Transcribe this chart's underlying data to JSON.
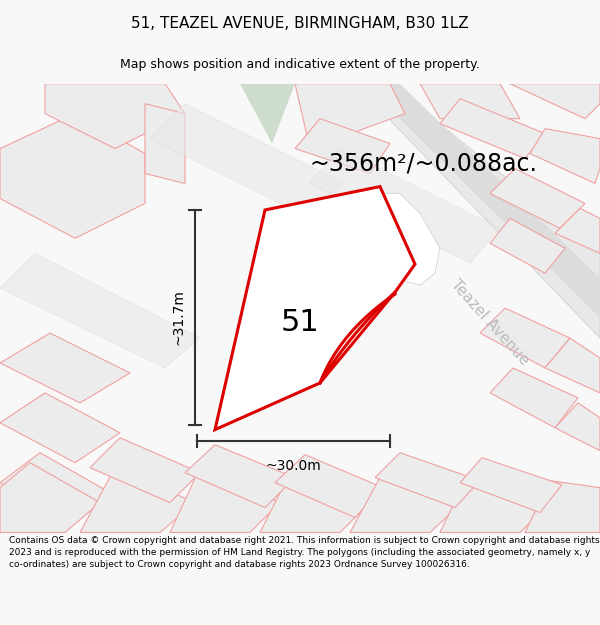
{
  "title": "51, TEAZEL AVENUE, BIRMINGHAM, B30 1LZ",
  "subtitle": "Map shows position and indicative extent of the property.",
  "area_label": "~356m²/~0.088ac.",
  "number_label": "51",
  "dim_height": "~31.7m",
  "dim_width": "~30.0m",
  "street_label": "Teazel Avenue",
  "footer": "Contains OS data © Crown copyright and database right 2021. This information is subject to Crown copyright and database rights 2023 and is reproduced with the permission of HM Land Registry. The polygons (including the associated geometry, namely x, y co-ordinates) are subject to Crown copyright and database rights 2023 Ordnance Survey 100026316.",
  "bg_color": "#f8f8f8",
  "map_bg": "#ffffff",
  "main_plot_color": "#dd0000",
  "neighbor_edge_color": "#f0a0a0",
  "neighbor_fill_color": "#ececec",
  "road_fill": "#e0e0e0",
  "road_edge": "#cccccc",
  "green_fill": "#cddccd",
  "street_label_color": "#bbbbbb",
  "dim_line_color": "#333333",
  "title_fontsize": 11,
  "subtitle_fontsize": 9,
  "area_fontsize": 17,
  "number_fontsize": 22,
  "dim_fontsize": 10,
  "street_fontsize": 11,
  "footer_fontsize": 6.5
}
